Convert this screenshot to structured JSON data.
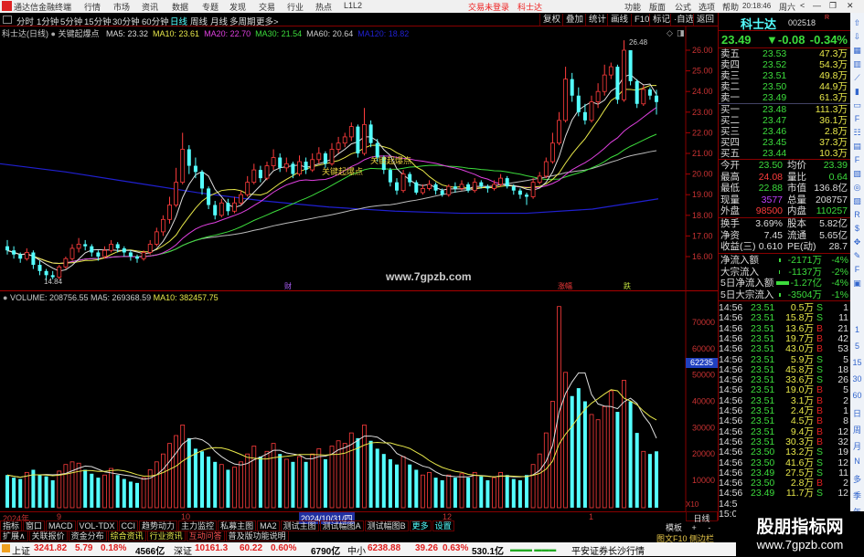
{
  "app": {
    "title": "通达信金融终端",
    "menu": [
      "行情",
      "市场",
      "资讯",
      "数据",
      "专题",
      "发现",
      "交易",
      "行业",
      "热点",
      "L1L2"
    ],
    "trade_notice": "交易未登录",
    "stock_name_center": "科士达",
    "right_menu": [
      "功能",
      "版面",
      "公式",
      "选项",
      "帮助"
    ],
    "clock": "20:18:46",
    "weekday": "周六"
  },
  "periods": [
    "分时",
    "1分钟",
    "5分钟",
    "15分钟",
    "30分钟",
    "60分钟",
    "日线",
    "周线",
    "月线",
    "多周期",
    "更多>"
  ],
  "active_period": "日线",
  "chart_tools": [
    "复权",
    "叠加",
    "统计",
    "画线",
    "F10",
    "标记",
    "·自选",
    "返回"
  ],
  "main_chart": {
    "label": "科士达(日线)",
    "indicator": "关键起爆点",
    "ma": [
      {
        "name": "MA5: 23.32",
        "color": "#dddddd"
      },
      {
        "name": "MA10: 23.61",
        "color": "#e8e84a"
      },
      {
        "name": "MA20: 22.70",
        "color": "#e040e0"
      },
      {
        "name": "MA30: 21.54",
        "color": "#3cdc3c"
      },
      {
        "name": "MA60: 20.64",
        "color": "#cccccc"
      },
      {
        "name": "MA120: 18.82",
        "color": "#2020d0"
      }
    ],
    "price_axis": [
      "26.00",
      "25.00",
      "24.00",
      "23.00",
      "22.00",
      "21.00",
      "20.00",
      "19.00",
      "18.00",
      "17.00",
      "16.00"
    ],
    "high_label": "26.48",
    "low_label": "14.84",
    "signal_label": "关键起爆点",
    "markers": [
      {
        "text": "财",
        "color": "#b060ff"
      },
      {
        "text": "涨幅",
        "color": "#ff3c3c"
      },
      {
        "text": "跌",
        "color": "#c0e040"
      }
    ],
    "watermark": "www.7gpzb.com",
    "ma120": [
      20.5,
      20.1,
      19.6,
      19.1,
      18.7,
      18.4,
      18.2,
      18.1,
      18.1,
      18.3,
      18.8
    ],
    "candles": [
      [
        16.5,
        16.3,
        16.8,
        16.1,
        12000
      ],
      [
        16.3,
        16.1,
        16.5,
        15.9,
        11000
      ],
      [
        16.1,
        15.9,
        16.2,
        15.7,
        10500
      ],
      [
        15.9,
        16.2,
        16.4,
        15.8,
        13000
      ],
      [
        16.2,
        15.6,
        16.3,
        15.4,
        14000
      ],
      [
        15.6,
        15.3,
        15.8,
        15.1,
        12000
      ],
      [
        15.3,
        15.1,
        15.4,
        14.84,
        11500
      ],
      [
        15.1,
        15.0,
        15.3,
        14.9,
        10000
      ],
      [
        15.0,
        15.5,
        15.6,
        14.9,
        13500
      ],
      [
        15.5,
        15.9,
        16.0,
        15.4,
        16000
      ],
      [
        15.9,
        16.4,
        16.6,
        15.8,
        17000
      ],
      [
        16.4,
        16.6,
        16.9,
        16.2,
        16500
      ],
      [
        16.6,
        16.5,
        16.8,
        16.3,
        14000
      ],
      [
        16.5,
        16.2,
        16.6,
        16.0,
        12500
      ],
      [
        16.2,
        16.0,
        16.3,
        15.8,
        11000
      ],
      [
        16.0,
        16.3,
        16.5,
        15.9,
        12000
      ],
      [
        16.3,
        16.6,
        16.8,
        16.2,
        14500
      ],
      [
        16.6,
        16.4,
        16.7,
        16.2,
        12000
      ],
      [
        16.4,
        16.2,
        16.5,
        16.0,
        10500
      ],
      [
        16.2,
        16.0,
        16.3,
        15.8,
        9500
      ],
      [
        16.0,
        15.9,
        16.1,
        15.7,
        9000
      ],
      [
        15.9,
        16.2,
        16.3,
        15.8,
        11000
      ],
      [
        16.2,
        16.6,
        16.8,
        16.1,
        14000
      ],
      [
        16.6,
        17.2,
        17.4,
        16.5,
        17000
      ],
      [
        17.2,
        17.8,
        18.0,
        17.0,
        20000
      ],
      [
        17.8,
        18.5,
        18.9,
        17.6,
        24000
      ],
      [
        18.5,
        19.6,
        20.3,
        18.4,
        27000
      ],
      [
        19.6,
        21.2,
        22.0,
        19.5,
        31000
      ],
      [
        21.2,
        20.4,
        21.4,
        20.0,
        26000
      ],
      [
        20.4,
        20.1,
        20.8,
        19.8,
        22000
      ],
      [
        20.1,
        19.3,
        20.2,
        19.0,
        21000
      ],
      [
        19.3,
        18.5,
        19.4,
        18.3,
        19000
      ],
      [
        18.5,
        18.0,
        18.7,
        17.8,
        17000
      ],
      [
        18.0,
        18.6,
        18.8,
        17.9,
        16000
      ],
      [
        18.6,
        18.2,
        18.8,
        18.0,
        14000
      ],
      [
        18.2,
        18.6,
        18.9,
        18.1,
        15000
      ],
      [
        18.6,
        19.0,
        19.2,
        18.5,
        17000
      ],
      [
        19.0,
        19.6,
        19.9,
        18.9,
        20000
      ],
      [
        19.6,
        20.2,
        20.5,
        19.5,
        23000
      ],
      [
        20.2,
        19.8,
        20.4,
        19.6,
        19000
      ],
      [
        19.8,
        20.4,
        20.6,
        19.7,
        21000
      ],
      [
        20.4,
        20.8,
        21.2,
        20.2,
        24000
      ],
      [
        20.8,
        20.3,
        21.0,
        20.1,
        20000
      ],
      [
        20.3,
        20.5,
        20.8,
        20.1,
        18000
      ],
      [
        20.5,
        20.0,
        20.6,
        19.8,
        17000
      ],
      [
        20.0,
        20.6,
        20.9,
        19.9,
        19000
      ],
      [
        20.6,
        20.2,
        20.8,
        20.0,
        17000
      ],
      [
        20.2,
        20.7,
        21.0,
        20.1,
        20000
      ],
      [
        20.7,
        21.0,
        21.3,
        20.5,
        22000
      ],
      [
        21.0,
        20.5,
        21.1,
        20.3,
        18000
      ],
      [
        20.5,
        21.2,
        21.5,
        20.4,
        23000
      ],
      [
        21.2,
        21.5,
        21.8,
        21.0,
        25000
      ],
      [
        21.5,
        21.8,
        22.0,
        21.3,
        24000
      ],
      [
        21.8,
        22.3,
        22.5,
        21.6,
        28000
      ],
      [
        22.3,
        21.0,
        22.4,
        20.8,
        26000
      ],
      [
        21.0,
        22.4,
        23.2,
        20.9,
        31000
      ],
      [
        22.4,
        21.5,
        22.6,
        21.3,
        25000
      ],
      [
        21.5,
        20.8,
        21.7,
        20.6,
        22000
      ],
      [
        20.8,
        20.2,
        20.9,
        20.0,
        20000
      ],
      [
        20.2,
        19.6,
        20.3,
        19.4,
        18000
      ],
      [
        19.6,
        19.2,
        19.8,
        19.0,
        16000
      ],
      [
        19.2,
        20.0,
        20.2,
        19.1,
        19000
      ],
      [
        20.0,
        19.6,
        20.1,
        19.4,
        16000
      ],
      [
        19.6,
        19.1,
        19.7,
        19.0,
        14000
      ],
      [
        19.1,
        19.3,
        19.5,
        19.0,
        12000
      ],
      [
        19.3,
        19.5,
        19.7,
        19.2,
        13000
      ],
      [
        19.5,
        19.2,
        19.6,
        19.0,
        11000
      ],
      [
        19.2,
        19.0,
        19.3,
        18.9,
        10000
      ],
      [
        19.0,
        19.4,
        19.5,
        18.9,
        12000
      ],
      [
        19.4,
        19.3,
        19.6,
        19.1,
        11000
      ],
      [
        19.3,
        19.5,
        19.7,
        19.2,
        12500
      ],
      [
        19.5,
        19.2,
        19.6,
        19.1,
        11000
      ],
      [
        19.2,
        19.6,
        19.8,
        19.1,
        13000
      ],
      [
        19.6,
        19.4,
        19.7,
        19.3,
        11500
      ],
      [
        19.4,
        19.3,
        19.5,
        19.1,
        10000
      ],
      [
        19.3,
        19.5,
        19.7,
        19.2,
        11000
      ],
      [
        19.5,
        19.8,
        20.0,
        19.4,
        13000
      ],
      [
        19.8,
        19.4,
        19.9,
        19.3,
        12000
      ],
      [
        19.4,
        19.2,
        19.5,
        19.0,
        10500
      ],
      [
        19.2,
        19.0,
        19.3,
        18.8,
        10000
      ],
      [
        19.0,
        18.9,
        19.1,
        18.5,
        12000
      ],
      [
        18.9,
        19.6,
        19.8,
        18.8,
        16000
      ],
      [
        19.6,
        19.9,
        20.1,
        19.5,
        20000
      ],
      [
        19.9,
        20.6,
        20.8,
        19.8,
        28000
      ],
      [
        20.6,
        21.5,
        22.0,
        20.5,
        40000
      ],
      [
        21.5,
        22.6,
        23.0,
        21.4,
        76000
      ],
      [
        22.6,
        24.6,
        25.2,
        22.5,
        51000
      ],
      [
        24.6,
        23.8,
        24.9,
        23.5,
        42000
      ],
      [
        23.8,
        23.0,
        24.2,
        22.8,
        45000
      ],
      [
        23.0,
        22.6,
        23.4,
        22.4,
        40000
      ],
      [
        22.6,
        23.5,
        23.8,
        22.5,
        35000
      ],
      [
        23.5,
        24.0,
        24.4,
        23.2,
        33000
      ],
      [
        24.0,
        24.8,
        25.3,
        23.8,
        38000
      ],
      [
        24.8,
        25.2,
        25.4,
        24.6,
        44000
      ],
      [
        25.2,
        23.6,
        25.3,
        23.4,
        36000
      ],
      [
        23.6,
        26.0,
        26.48,
        23.5,
        48000
      ],
      [
        26.0,
        24.5,
        26.0,
        24.3,
        40000
      ],
      [
        24.5,
        23.4,
        24.6,
        23.2,
        28000
      ],
      [
        23.4,
        24.1,
        24.3,
        23.3,
        21000
      ],
      [
        24.1,
        23.8,
        24.2,
        23.6,
        20000
      ],
      [
        23.8,
        23.49,
        24.08,
        22.88,
        21000
      ]
    ]
  },
  "volume_chart": {
    "label": "VOLUME: 208756.55",
    "ma5": "MA5: 269368.59",
    "ma10": "MA10: 382457.75",
    "axis": [
      "70000",
      "60000",
      "50000",
      "40000",
      "30000",
      "20000",
      "10000"
    ],
    "cursor_value": "62235",
    "unit": "X10"
  },
  "date_axis": {
    "labels": [
      "2024年",
      "9",
      "10",
      "12",
      "1"
    ],
    "cursor_date": "2024/10/31/四"
  },
  "tabs_row1": [
    "指标",
    "窗口",
    "MACD",
    "VOL-TDX",
    "CCI",
    "趋势动力",
    "主力监控",
    "私募主图",
    "MA2",
    "测试主图",
    "测试幅图A",
    "测试幅图B",
    "更多",
    "设置"
  ],
  "tabs_row2": [
    "扩展∧",
    "关联报价",
    "资金分布",
    "综合资讯",
    "行业资讯",
    "互动问答",
    "普及版功能说明"
  ],
  "chart_controls": {
    "template": "模板",
    "plus": "+",
    "minus": "-",
    "period": "日线",
    "f10": "图文F10",
    "sidebar": "侧边栏"
  },
  "quote": {
    "name": "科士达",
    "code": "002518",
    "flag": "R",
    "price": "23.49",
    "change": "▼-0.08",
    "pct": "-0.34%",
    "sells": [
      [
        "卖五",
        "23.53",
        "47.3万"
      ],
      [
        "卖四",
        "23.52",
        "54.3万"
      ],
      [
        "卖三",
        "23.51",
        "49.8万"
      ],
      [
        "卖二",
        "23.50",
        "44.9万"
      ],
      [
        "卖一",
        "23.49",
        "61.3万"
      ]
    ],
    "buys": [
      [
        "买一",
        "23.48",
        "111.3万"
      ],
      [
        "买二",
        "23.47",
        "36.1万"
      ],
      [
        "买三",
        "23.46",
        "2.8万"
      ],
      [
        "买四",
        "23.45",
        "37.3万"
      ],
      [
        "买五",
        "23.44",
        "10.3万"
      ]
    ],
    "stats": [
      [
        "今开",
        "23.50",
        "grn",
        "均价",
        "23.39",
        "grn"
      ],
      [
        "最高",
        "24.08",
        "red",
        "量比",
        "0.64",
        "grn"
      ],
      [
        "最低",
        "22.88",
        "grn",
        "市值",
        "136.8亿",
        "wht"
      ],
      [
        "现量",
        "3577",
        "pur",
        "总量",
        "208757",
        "wht"
      ],
      [
        "外盘",
        "98500",
        "red",
        "内盘",
        "110257",
        "grn"
      ]
    ],
    "stats2": [
      [
        "换手",
        "3.69%",
        "股本",
        "5.82亿"
      ],
      [
        "净资",
        "7.45",
        "流通",
        "5.65亿"
      ],
      [
        "收益(三)",
        "0.610",
        "PE(动)",
        "28.7"
      ]
    ],
    "flows": [
      [
        "净流入额",
        "-2171万",
        "-4%"
      ],
      [
        "大宗流入",
        "-1137万",
        "-2%"
      ],
      [
        "5日净流入额",
        "-1.27亿",
        "-4%"
      ],
      [
        "5日大宗流入",
        "-3504万",
        "-1%"
      ]
    ],
    "ticks": [
      [
        "14:56",
        "23.51",
        "0.5万",
        "S",
        "1"
      ],
      [
        "14:56",
        "23.51",
        "15.8万",
        "S",
        "11"
      ],
      [
        "14:56",
        "23.51",
        "13.6万",
        "B",
        "21"
      ],
      [
        "14:56",
        "23.51",
        "19.7万",
        "B",
        "42"
      ],
      [
        "14:56",
        "23.51",
        "43.0万",
        "B",
        "53"
      ],
      [
        "14:56",
        "23.51",
        "5.9万",
        "S",
        "5"
      ],
      [
        "14:56",
        "23.51",
        "45.8万",
        "S",
        "18"
      ],
      [
        "14:56",
        "23.51",
        "33.6万",
        "S",
        "26"
      ],
      [
        "14:56",
        "23.51",
        "19.0万",
        "B",
        "5"
      ],
      [
        "14:56",
        "23.51",
        "3.1万",
        "B",
        "2"
      ],
      [
        "14:56",
        "23.51",
        "2.4万",
        "B",
        "1"
      ],
      [
        "14:56",
        "23.51",
        "4.5万",
        "B",
        "8"
      ],
      [
        "14:56",
        "23.51",
        "9.4万",
        "B",
        "12"
      ],
      [
        "14:56",
        "23.51",
        "30.3万",
        "B",
        "32"
      ],
      [
        "14:56",
        "23.50",
        "13.2万",
        "S",
        "19"
      ],
      [
        "14:56",
        "23.50",
        "41.6万",
        "S",
        "12"
      ],
      [
        "14:56",
        "23.49",
        "27.5万",
        "S",
        "11"
      ],
      [
        "14:56",
        "23.50",
        "2.8万",
        "B",
        "2"
      ],
      [
        "14:56",
        "23.49",
        "11.7万",
        "S",
        "12"
      ],
      [
        "14:5",
        "",
        "",
        "",
        ""
      ],
      [
        "15:0",
        "",
        "",
        "",
        ""
      ]
    ]
  },
  "side_icons": [
    "1",
    "5",
    "15",
    "30",
    "60",
    "日",
    "周",
    "月",
    "N",
    "多",
    "季",
    "年"
  ],
  "status": {
    "sh": [
      "上证",
      "3241.82",
      "5.79",
      "0.18%",
      "4566亿"
    ],
    "sz": [
      "深证",
      "10161.3",
      "60.22",
      "0.60%",
      "6790亿"
    ],
    "zx": [
      "中小",
      "6238.88",
      "39.26",
      "0.63%",
      "530.1亿"
    ],
    "broker": "平安证券长沙行情"
  },
  "watermark": {
    "title": "股朋指标网",
    "url": "www.7gpzb.com"
  },
  "colors": {
    "up": "#ff3c3c",
    "down": "#54ffff",
    "bg": "#000000",
    "grid": "#800000"
  }
}
